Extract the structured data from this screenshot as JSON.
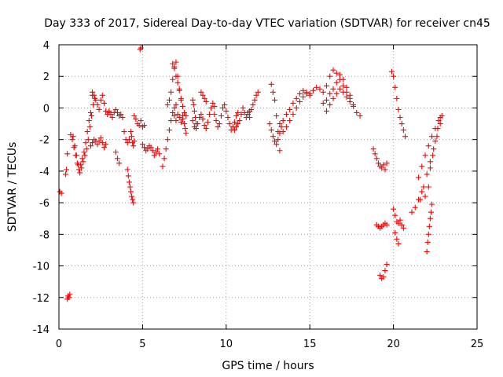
{
  "chart_data": {
    "type": "scatter",
    "title": "Day 333 of 2017, Sidereal Day-to-day VTEC variation (SDTVAR) for receiver cn45",
    "xlabel": "GPS time / hours",
    "ylabel": "SDTVAR / TECUs",
    "xlim": [
      0,
      25
    ],
    "ylim": [
      -14,
      4
    ],
    "x_ticks": [
      0,
      5,
      10,
      15,
      20,
      25
    ],
    "y_ticks": [
      -14,
      -12,
      -10,
      -8,
      -6,
      -4,
      -2,
      0,
      2,
      4
    ],
    "x_tick_labels": [
      "0",
      "5",
      "10",
      "15",
      "20",
      "25"
    ],
    "y_tick_labels": [
      "-14",
      "-12",
      "-10",
      "-8",
      "-6",
      "-4",
      "-2",
      "0",
      "2",
      "4"
    ],
    "grid": true,
    "marker": "plus",
    "color": "#ff0000",
    "series": [
      {
        "name": "seg-start",
        "x": [
          0.05,
          0.15
        ],
        "y": [
          -5.3,
          -5.4
        ]
      },
      {
        "name": "seg-a",
        "x": [
          0.4,
          0.45,
          0.5
        ],
        "y": [
          -4.2,
          -3.9,
          -2.9
        ]
      },
      {
        "name": "seg-low",
        "x": [
          0.5,
          0.55,
          0.6,
          0.65
        ],
        "y": [
          -12.1,
          -11.9,
          -12.0,
          -11.8
        ]
      },
      {
        "name": "seg-b",
        "x": [
          0.7,
          0.8,
          0.9,
          1.0,
          1.1,
          1.2,
          1.3,
          1.4,
          1.5,
          1.6,
          1.7,
          1.8,
          1.9,
          2.0
        ],
        "y": [
          -1.7,
          -2.0,
          -2.5,
          -3.0,
          -3.5,
          -3.9,
          -3.6,
          -3.2,
          -2.8,
          -2.2,
          -1.5,
          -0.8,
          -0.3,
          0.8
        ]
      },
      {
        "name": "seg-b2",
        "x": [
          0.85,
          0.95,
          1.05,
          1.15,
          1.25,
          1.35,
          1.45,
          1.55,
          1.65,
          1.75,
          1.85,
          1.95,
          2.05,
          2.15
        ],
        "y": [
          -1.8,
          -2.4,
          -3.0,
          -3.6,
          -4.1,
          -3.8,
          -3.4,
          -3.0,
          -2.6,
          -2.0,
          -1.2,
          -0.5,
          0.2,
          0.6
        ]
      },
      {
        "name": "seg-c",
        "x": [
          1.9,
          2.0,
          2.1,
          2.2,
          2.3,
          2.4,
          2.5,
          2.6,
          2.7,
          2.8
        ],
        "y": [
          -2.4,
          -2.2,
          -2.0,
          -2.1,
          -2.3,
          -2.1,
          -1.9,
          -2.2,
          -2.5,
          -2.3
        ]
      },
      {
        "name": "seg-d",
        "x": [
          2.0,
          2.1,
          2.2,
          2.3,
          2.4,
          2.5,
          2.6,
          2.7,
          2.8,
          2.9,
          3.0
        ],
        "y": [
          1.0,
          0.8,
          0.5,
          0.2,
          -0.1,
          0.5,
          0.8,
          0.3,
          -0.2,
          -0.4,
          -0.3
        ]
      },
      {
        "name": "seg-e",
        "x": [
          3.0,
          3.1,
          3.2,
          3.3,
          3.4,
          3.5,
          3.6,
          3.7,
          3.8,
          3.9,
          4.0,
          4.1,
          4.2
        ],
        "y": [
          -0.2,
          -0.4,
          -0.6,
          -0.3,
          -0.1,
          -0.3,
          -0.5,
          -0.4,
          -0.6,
          -1.5,
          -2.0,
          -2.2,
          -2.0
        ]
      },
      {
        "name": "seg-f",
        "x": [
          3.4,
          3.5,
          3.6
        ],
        "y": [
          -2.8,
          -3.2,
          -3.5
        ]
      },
      {
        "name": "seg-g",
        "x": [
          4.1,
          4.15,
          4.2,
          4.25,
          4.3,
          4.35,
          4.4,
          4.45
        ],
        "y": [
          -3.9,
          -4.3,
          -4.7,
          -5.0,
          -5.3,
          -5.6,
          -5.8,
          -6.0
        ]
      },
      {
        "name": "seg-h",
        "x": [
          4.3,
          4.35,
          4.4,
          4.45,
          4.5
        ],
        "y": [
          -1.5,
          -1.8,
          -2.2,
          -2.4,
          -2.1
        ]
      },
      {
        "name": "seg-i",
        "x": [
          4.5,
          4.6,
          4.7,
          4.8,
          4.9,
          5.0,
          5.1
        ],
        "y": [
          -0.5,
          -0.7,
          -1.0,
          -1.1,
          -0.8,
          -1.2,
          -1.1
        ]
      },
      {
        "name": "seg-top",
        "x": [
          4.85,
          4.9
        ],
        "y": [
          3.7,
          3.8
        ]
      },
      {
        "name": "seg-j",
        "x": [
          5.0,
          5.1,
          5.2,
          5.3,
          5.4,
          5.5,
          5.6,
          5.7,
          5.8,
          5.9,
          6.0
        ],
        "y": [
          -2.3,
          -2.5,
          -2.7,
          -2.6,
          -2.4,
          -2.5,
          -2.7,
          -3.0,
          -2.8,
          -2.6,
          -2.9
        ]
      },
      {
        "name": "seg-k",
        "x": [
          6.2,
          6.3,
          6.4,
          6.5,
          6.6,
          6.7,
          6.8,
          6.9,
          7.0
        ],
        "y": [
          -3.7,
          -3.2,
          -2.6,
          -2.0,
          -1.4,
          -0.8,
          -0.3,
          0.0,
          0.2
        ]
      },
      {
        "name": "seg-l",
        "x": [
          6.5,
          6.6,
          6.7,
          6.8,
          6.9,
          7.0,
          7.1,
          7.2,
          7.3,
          7.4
        ],
        "y": [
          0.2,
          0.5,
          1.0,
          1.8,
          2.6,
          2.9,
          2.0,
          1.2,
          0.5,
          -0.5
        ]
      },
      {
        "name": "seg-m",
        "x": [
          6.8,
          6.9,
          7.0,
          7.1,
          7.2,
          7.3,
          7.4
        ],
        "y": [
          2.8,
          2.5,
          2.0,
          1.6,
          1.1,
          0.6,
          0.1
        ]
      },
      {
        "name": "seg-n",
        "x": [
          6.9,
          7.0,
          7.1,
          7.2,
          7.3,
          7.4,
          7.5,
          7.6
        ],
        "y": [
          -0.5,
          -0.8,
          -0.4,
          -0.6,
          -0.9,
          -0.7,
          -0.3,
          -0.5
        ]
      },
      {
        "name": "seg-o",
        "x": [
          7.5,
          7.55,
          7.6
        ],
        "y": [
          -1.0,
          -1.3,
          -1.6
        ]
      },
      {
        "name": "seg-p",
        "x": [
          8.0,
          8.05,
          8.1,
          8.15,
          8.2
        ],
        "y": [
          0.5,
          0.2,
          -0.2,
          -0.6,
          -1.0
        ]
      },
      {
        "name": "seg-q",
        "x": [
          8.0,
          8.1,
          8.2,
          8.3,
          8.4,
          8.5,
          8.6,
          8.7,
          8.8,
          8.9,
          9.0,
          9.1,
          9.2,
          9.3
        ],
        "y": [
          -0.8,
          -1.2,
          -1.3,
          -1.0,
          -0.6,
          -0.4,
          -0.7,
          -1.1,
          -1.3,
          -0.9,
          -0.4,
          0.0,
          0.3,
          0.1
        ]
      },
      {
        "name": "seg-r",
        "x": [
          8.5,
          8.6,
          8.7,
          8.8
        ],
        "y": [
          1.0,
          0.8,
          0.6,
          0.4
        ]
      },
      {
        "name": "seg-s",
        "x": [
          9.3,
          9.4,
          9.5,
          9.6,
          9.7,
          9.8,
          9.9,
          10.0,
          10.1,
          10.2,
          10.3,
          10.4,
          10.5,
          10.6,
          10.7
        ],
        "y": [
          -0.4,
          -0.8,
          -1.2,
          -1.0,
          -0.5,
          0.0,
          0.2,
          -0.2,
          -0.6,
          -1.0,
          -1.4,
          -1.2,
          -0.9,
          -0.5,
          -0.3
        ]
      },
      {
        "name": "seg-t",
        "x": [
          10.5,
          10.6,
          10.7,
          10.8,
          10.9,
          11.0,
          11.1,
          11.2,
          11.3,
          11.4
        ],
        "y": [
          -1.4,
          -1.2,
          -1.0,
          -0.8,
          -0.4,
          0.0,
          -0.3,
          -0.6,
          -0.3,
          -0.6
        ]
      },
      {
        "name": "seg-u",
        "x": [
          11.3,
          11.4,
          11.5,
          11.6,
          11.7,
          11.8,
          11.9
        ],
        "y": [
          -0.4,
          -0.2,
          -0.1,
          0.2,
          0.5,
          0.8,
          1.0
        ]
      },
      {
        "name": "seg-v",
        "x": [
          12.6,
          12.7,
          12.8,
          12.9,
          13.0,
          13.1,
          13.2,
          13.3
        ],
        "y": [
          -1.0,
          -1.4,
          -1.8,
          -2.1,
          -2.3,
          -2.0,
          -1.6,
          -1.2
        ]
      },
      {
        "name": "seg-w",
        "x": [
          12.7,
          12.8,
          12.9,
          13.0,
          13.1,
          13.2
        ],
        "y": [
          1.5,
          1.0,
          0.5,
          -0.5,
          -1.5,
          -2.7
        ]
      },
      {
        "name": "seg-x",
        "x": [
          13.2,
          13.4,
          13.6,
          13.8,
          14.0,
          14.2,
          14.4,
          14.6,
          14.8,
          15.0
        ],
        "y": [
          -1.0,
          -0.8,
          -0.4,
          -0.1,
          0.3,
          0.6,
          0.9,
          1.1,
          1.0,
          0.8
        ]
      },
      {
        "name": "seg-y",
        "x": [
          13.4,
          13.6,
          13.8,
          14.0,
          14.2,
          14.4,
          14.6,
          14.8
        ],
        "y": [
          -1.5,
          -1.2,
          -0.8,
          -0.4,
          0.0,
          0.4,
          0.7,
          0.9
        ]
      },
      {
        "name": "seg-z",
        "x": [
          15.0,
          15.2,
          15.4,
          15.6,
          15.8,
          16.0,
          16.2,
          16.4,
          16.6,
          16.8,
          17.0,
          17.2,
          17.4,
          17.6,
          17.8,
          18.0
        ],
        "y": [
          0.9,
          1.1,
          1.3,
          1.2,
          1.0,
          1.4,
          2.0,
          2.4,
          2.2,
          1.8,
          1.4,
          1.0,
          0.6,
          0.1,
          -0.3,
          -0.5
        ]
      },
      {
        "name": "seg-aa",
        "x": [
          15.8,
          16.0,
          16.2,
          16.4,
          16.6,
          16.8,
          17.0,
          17.2,
          17.4,
          17.6
        ],
        "y": [
          0.3,
          0.5,
          0.9,
          1.2,
          1.6,
          2.1,
          1.8,
          1.3,
          0.8,
          0.2
        ]
      },
      {
        "name": "seg-ab",
        "x": [
          16.0,
          16.2,
          16.4,
          16.6,
          16.8,
          17.0,
          17.2,
          17.4
        ],
        "y": [
          -0.2,
          0.2,
          0.6,
          0.9,
          1.2,
          1.0,
          0.7,
          0.4
        ]
      },
      {
        "name": "seg-ac",
        "x": [
          18.8,
          18.9,
          19.0,
          19.1,
          19.2,
          19.3,
          19.4,
          19.5,
          19.6
        ],
        "y": [
          -2.6,
          -2.9,
          -3.2,
          -3.5,
          -3.7,
          -3.8,
          -3.6,
          -3.9,
          -3.5
        ]
      },
      {
        "name": "seg-ad",
        "x": [
          19.0,
          19.1,
          19.2,
          19.3,
          19.4,
          19.5,
          19.6
        ],
        "y": [
          -7.4,
          -7.5,
          -7.6,
          -7.5,
          -7.4,
          -7.3,
          -7.4
        ]
      },
      {
        "name": "seg-ae",
        "x": [
          19.2,
          19.3,
          19.4,
          19.5,
          19.6
        ],
        "y": [
          -10.6,
          -10.8,
          -10.7,
          -10.3,
          -9.9
        ]
      },
      {
        "name": "seg-af",
        "x": [
          19.9,
          20.0,
          20.1,
          20.2,
          20.3,
          20.4,
          20.5,
          20.6,
          20.7
        ],
        "y": [
          2.3,
          2.0,
          1.3,
          0.6,
          -0.1,
          -0.6,
          -1.0,
          -1.4,
          -1.8
        ]
      },
      {
        "name": "seg-ag",
        "x": [
          20.0,
          20.1,
          20.2,
          20.3,
          20.4,
          20.5,
          20.6
        ],
        "y": [
          -6.4,
          -6.8,
          -7.2,
          -7.3,
          -7.1,
          -7.4,
          -7.6
        ]
      },
      {
        "name": "seg-ah",
        "x": [
          20.1,
          20.2,
          20.3
        ],
        "y": [
          -7.9,
          -8.3,
          -8.6
        ]
      },
      {
        "name": "seg-ai",
        "x": [
          21.1,
          21.3,
          21.5,
          21.7,
          21.9,
          22.1
        ],
        "y": [
          -6.6,
          -6.3,
          -5.8,
          -5.3,
          -5.6,
          -5.0
        ]
      },
      {
        "name": "seg-aj",
        "x": [
          21.5,
          21.7,
          21.9,
          22.1,
          22.3,
          22.5,
          22.7,
          22.9
        ],
        "y": [
          -4.4,
          -3.7,
          -3.0,
          -2.4,
          -1.8,
          -1.3,
          -0.8,
          -0.5
        ]
      },
      {
        "name": "seg-ak",
        "x": [
          21.6,
          21.8,
          22.0,
          22.2,
          22.4,
          22.6,
          22.8
        ],
        "y": [
          -5.8,
          -5.0,
          -4.2,
          -3.4,
          -2.6,
          -1.8,
          -1.0
        ]
      },
      {
        "name": "seg-al",
        "x": [
          22.0,
          22.05,
          22.1,
          22.15,
          22.2,
          22.25,
          22.3
        ],
        "y": [
          -9.1,
          -8.5,
          -8.0,
          -7.5,
          -7.0,
          -6.6,
          -6.1
        ]
      },
      {
        "name": "seg-am",
        "x": [
          22.2,
          22.35,
          22.5,
          22.65,
          22.8
        ],
        "y": [
          -3.8,
          -3.0,
          -2.1,
          -1.3,
          -0.6
        ]
      }
    ]
  }
}
